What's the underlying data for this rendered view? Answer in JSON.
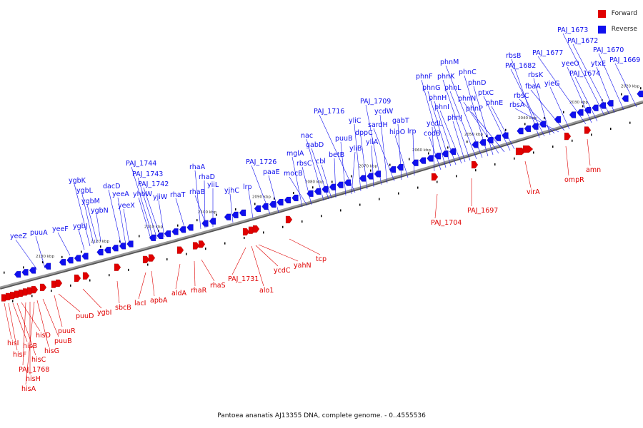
{
  "colors": {
    "forward": "#e00000",
    "reverse": "#1010ee",
    "backbone": "#9a9a9a"
  },
  "legend": [
    {
      "label": "Forward",
      "color": "#e00000"
    },
    {
      "label": "Reverse",
      "color": "#1010ee"
    }
  ],
  "caption": "Pantoea ananatis AJ13355 DNA, complete genome. - 0..4555536",
  "ticks": [
    "2020 kbp",
    "2030 kbp",
    "2040 kbp",
    "2050 kbp",
    "2060 kbp",
    "2070 kbp",
    "2080 kbp",
    "2090 kbp",
    "2100 kbp",
    "2110 kbp",
    "2120 kbp",
    "2130 kbp"
  ],
  "reverse_genes": [
    "yeeZ",
    "puuA",
    "yeeF",
    "ygbJ",
    "ygbK",
    "ygbL",
    "ygbM",
    "ygbN",
    "dacD",
    "yeeA",
    "yeeX",
    "yhbW",
    "PAJ_1744",
    "PAJ_1743",
    "PAJ_1742",
    "yjiW",
    "rhaT",
    "rhaA",
    "rhaD",
    "rhaB",
    "yiiL",
    "yjhC",
    "lrp",
    "PAJ_1726",
    "paaE",
    "mglA",
    "mocB",
    "rbsC",
    "nac",
    "gabD",
    "cbl",
    "betB",
    "puuB",
    "yliB",
    "PAJ_1716",
    "yliC",
    "dppC",
    "yliA",
    "PAJ_1709",
    "ycdW",
    "sardH",
    "gabT",
    "hipO",
    "lrp",
    "ycdL",
    "codB",
    "phnF",
    "phnG",
    "phnH",
    "phnI",
    "phnJ",
    "phnK",
    "phnL",
    "phnM",
    "phnC",
    "phnD",
    "phnN",
    "phnP",
    "ptxC",
    "phnE",
    "rbsB",
    "PAJ_1682",
    "rbsK",
    "rbsC",
    "rbsA",
    "fbaA",
    "yieG",
    "PAJ_1677",
    "yeeO",
    "PAJ_1674",
    "PAJ_1673",
    "PAJ_1672",
    "ytxE",
    "PAJ_1670",
    "PAJ_1669"
  ],
  "forward_genes": [
    "hisI",
    "hisF",
    "hisB",
    "hisC",
    "hisD",
    "PAJ_1768",
    "hisH",
    "hisA",
    "hisG",
    "puuB",
    "puuR",
    "puuD",
    "ygbI",
    "sbcB",
    "lacI",
    "apbA",
    "aldA",
    "rhaR",
    "rhaS",
    "PAJ_1731",
    "alo1",
    "ycdC",
    "yahN",
    "tcp",
    "PAJ_1704",
    "PAJ_1697",
    "virA",
    "ompR",
    "amn"
  ]
}
